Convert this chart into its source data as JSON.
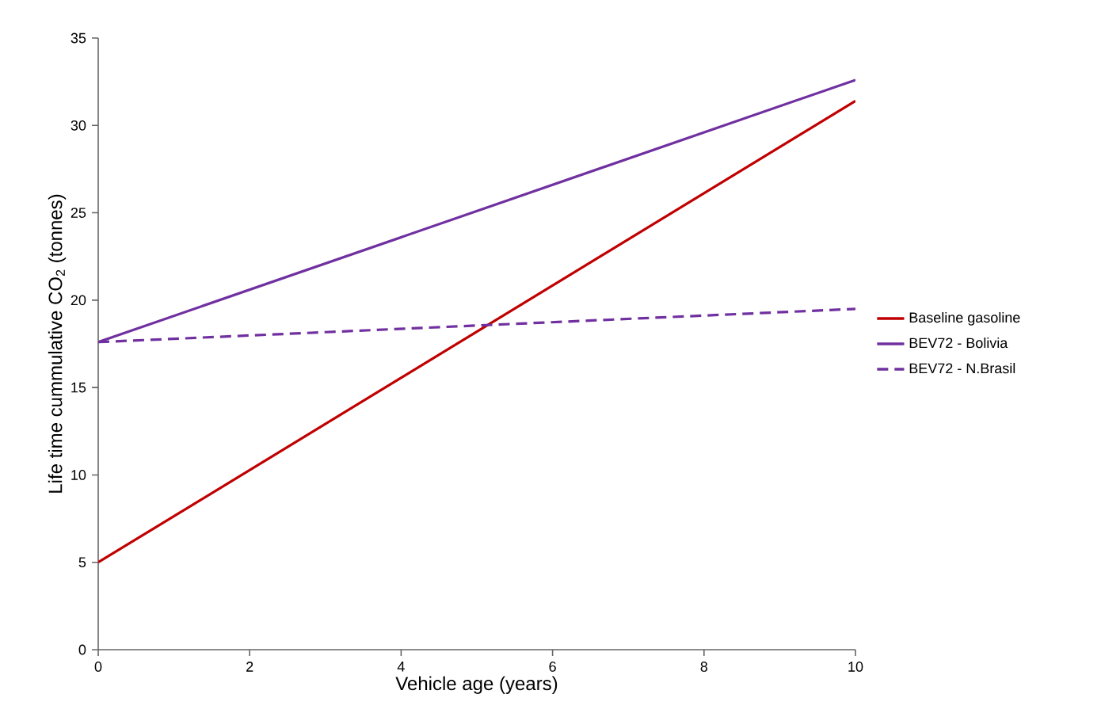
{
  "chart_data": {
    "type": "line",
    "xlabel": "Vehicle age (years)",
    "ylabel": "Life time cummulative CO$_{2}$ (tonnes)",
    "x": [
      0,
      10
    ],
    "series": [
      {
        "name": "Baseline gasoline",
        "color": "#c00000",
        "values": [
          5,
          31.4
        ],
        "line_style": "solid"
      },
      {
        "name": "BEV72 - Bolivia",
        "color": "#7030a0",
        "values": [
          17.6,
          32.6
        ],
        "line_style": "solid"
      },
      {
        "name": "BEV72 - N.Brasil",
        "color": "#7030a0",
        "values": [
          17.6,
          19.5
        ],
        "line_style": "dashed"
      }
    ],
    "xlim": [
      0,
      10
    ],
    "ylim": [
      0,
      35
    ],
    "xticks": [
      0,
      2,
      4,
      6,
      8,
      10
    ],
    "yticks": [
      0,
      5,
      10,
      15,
      20,
      25,
      30,
      35
    ],
    "grid": false,
    "legend": "right",
    "marker": "none"
  }
}
